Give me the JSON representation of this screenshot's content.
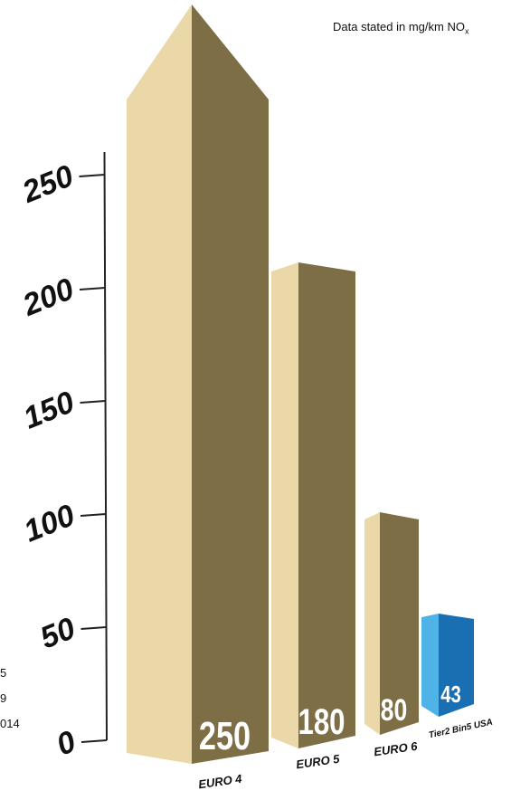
{
  "note": {
    "text": "Data stated in mg/km NO",
    "subscript": "x"
  },
  "left_fragments": [
    "5",
    "9",
    "014"
  ],
  "chart_data": {
    "type": "bar",
    "unit": "mg/km NOx",
    "categories": [
      "EURO 4",
      "EURO 5",
      "EURO 6",
      "Tier2 Bin5 USA"
    ],
    "values": [
      250,
      180,
      80,
      43
    ],
    "value_labels": [
      "250",
      "180",
      "80",
      "43"
    ],
    "yticks": [
      0,
      50,
      100,
      150,
      200,
      250
    ],
    "ylim": [
      0,
      250
    ],
    "grid": false,
    "colors": {
      "euro_front": "#7d6e45",
      "euro_side": "#ead8a9",
      "euro_top": "#f4e8c9",
      "us_front": "#1a6fb3",
      "us_side": "#4fb3e8",
      "axis": "#222222",
      "tick_label": "#111111"
    }
  }
}
